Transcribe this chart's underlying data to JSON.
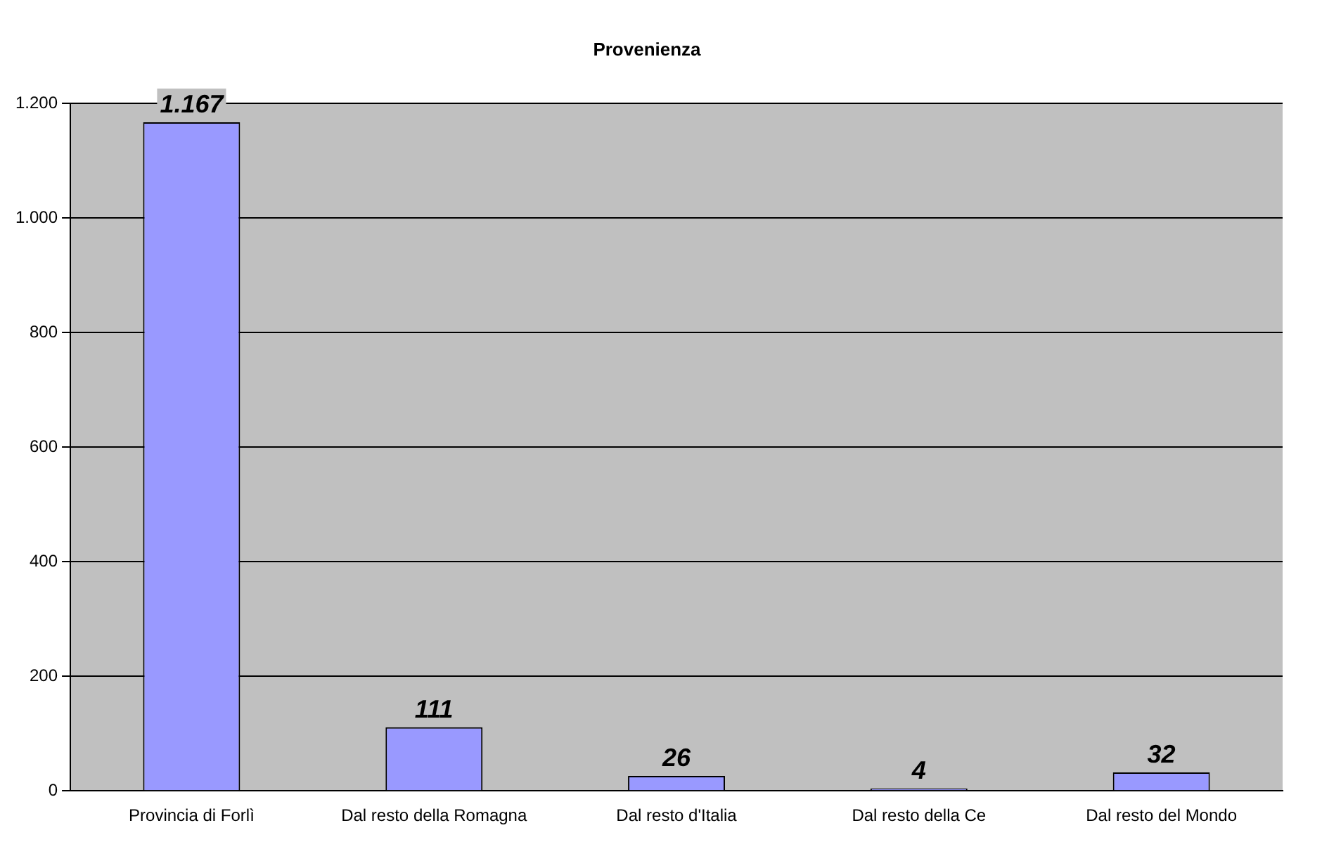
{
  "chart_data": {
    "type": "bar",
    "title": "Provenienza",
    "categories": [
      "Provincia di Forlì",
      "Dal resto della Romagna",
      "Dal resto d'Italia",
      "Dal resto della Ce",
      "Dal resto del Mondo"
    ],
    "values": [
      1167,
      111,
      26,
      4,
      32
    ],
    "value_labels": [
      "1.167",
      "111",
      "26",
      "4",
      "32"
    ],
    "color": "#9999ff",
    "ylim": [
      0,
      1200
    ],
    "yticks": [
      0,
      200,
      400,
      600,
      800,
      {
        "value": 1000,
        "label": "1.000"
      },
      {
        "value": 1200,
        "label": "1.200"
      }
    ],
    "grid": "y"
  }
}
